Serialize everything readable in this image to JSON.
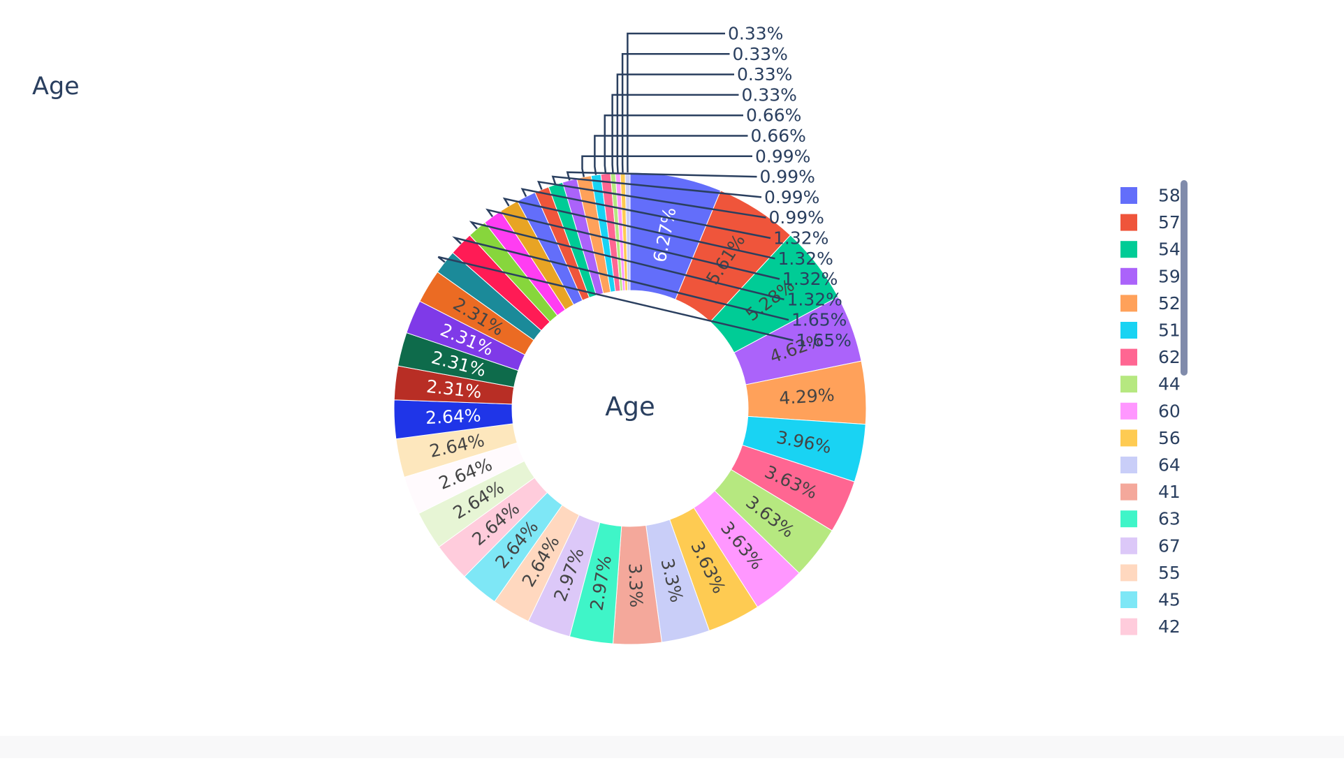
{
  "chart_data": {
    "type": "pie",
    "title": "Age",
    "center_label": "Age",
    "hole": 0.5,
    "slices": [
      {
        "label": "58",
        "value": 6.27,
        "text": "6.27%",
        "color": "#636efa"
      },
      {
        "label": "57",
        "value": 5.61,
        "text": "5.61%",
        "color": "#EF553B"
      },
      {
        "label": "54",
        "value": 5.28,
        "text": "5.28%",
        "color": "#00cc96"
      },
      {
        "label": "59",
        "value": 4.62,
        "text": "4.62%",
        "color": "#ab63fa"
      },
      {
        "label": "52",
        "value": 4.29,
        "text": "4.29%",
        "color": "#FFA15A"
      },
      {
        "label": "51",
        "value": 3.96,
        "text": "3.96%",
        "color": "#19d3f3"
      },
      {
        "label": "62",
        "value": 3.63,
        "text": "3.63%",
        "color": "#FF6692"
      },
      {
        "label": "44",
        "value": 3.63,
        "text": "3.63%",
        "color": "#B6E880"
      },
      {
        "label": "60",
        "value": 3.63,
        "text": "3.63%",
        "color": "#FF97FF"
      },
      {
        "label": "56",
        "value": 3.63,
        "text": "3.63%",
        "color": "#FECB52"
      },
      {
        "label": "64",
        "value": 3.3,
        "text": "3.3%",
        "color": "#c9cef8"
      },
      {
        "label": "41",
        "value": 3.3,
        "text": "3.3%",
        "color": "#f4a89b"
      },
      {
        "label": "63",
        "value": 2.97,
        "text": "2.97%",
        "color": "#3ff5c8"
      },
      {
        "label": "67",
        "value": 2.97,
        "text": "2.97%",
        "color": "#dcc8f8"
      },
      {
        "label": "55",
        "value": 2.64,
        "text": "2.64%",
        "color": "#ffd8bf"
      },
      {
        "label": "45",
        "value": 2.64,
        "text": "2.64%",
        "color": "#7ee7f6"
      },
      {
        "label": "42",
        "value": 2.64,
        "text": "2.64%",
        "color": "#ffccdc"
      },
      {
        "label": "",
        "value": 2.64,
        "text": "2.64%",
        "color": "#e7f5d5"
      },
      {
        "label": "",
        "value": 2.64,
        "text": "2.64%",
        "color": "#fffafd"
      },
      {
        "label": "",
        "value": 2.64,
        "text": "2.64%",
        "color": "#fde7bd"
      },
      {
        "label": "",
        "value": 2.64,
        "text": "2.64%",
        "color": "#1f35e8"
      },
      {
        "label": "",
        "value": 2.31,
        "text": "2.31%",
        "color": "#b82e25"
      },
      {
        "label": "",
        "value": 2.31,
        "text": "2.31%",
        "color": "#0e6b4b"
      },
      {
        "label": "",
        "value": 2.31,
        "text": "2.31%",
        "color": "#7f3ae8"
      },
      {
        "label": "",
        "value": 2.31,
        "text": "2.31%",
        "color": "#eb6b23"
      },
      {
        "label": "",
        "value": 1.65,
        "text": "1.65%",
        "color": "#1b8a99"
      },
      {
        "label": "",
        "value": 1.65,
        "text": "1.65%",
        "color": "#ff1b55"
      },
      {
        "label": "",
        "value": 1.32,
        "text": "1.32%",
        "color": "#87d63c"
      },
      {
        "label": "",
        "value": 1.32,
        "text": "1.32%",
        "color": "#ff3df2"
      },
      {
        "label": "",
        "value": 1.32,
        "text": "1.32%",
        "color": "#e8a424"
      },
      {
        "label": "",
        "value": 1.32,
        "text": "1.32%",
        "color": "#636efa"
      },
      {
        "label": "",
        "value": 0.99,
        "text": "0.99%",
        "color": "#EF553B"
      },
      {
        "label": "",
        "value": 0.99,
        "text": "0.99%",
        "color": "#00cc96"
      },
      {
        "label": "",
        "value": 0.99,
        "text": "0.99%",
        "color": "#ab63fa"
      },
      {
        "label": "",
        "value": 0.99,
        "text": "0.99%",
        "color": "#FFA15A"
      },
      {
        "label": "",
        "value": 0.66,
        "text": "0.66%",
        "color": "#19d3f3"
      },
      {
        "label": "",
        "value": 0.66,
        "text": "0.66%",
        "color": "#FF6692"
      },
      {
        "label": "",
        "value": 0.33,
        "text": "0.33%",
        "color": "#B6E880"
      },
      {
        "label": "",
        "value": 0.33,
        "text": "0.33%",
        "color": "#FF97FF"
      },
      {
        "label": "",
        "value": 0.33,
        "text": "0.33%",
        "color": "#FECB52"
      },
      {
        "label": "",
        "value": 0.33,
        "text": "0.33%",
        "color": "#c9cef8"
      }
    ],
    "legend": {
      "position": "right",
      "scrollable": true,
      "items": [
        "58",
        "57",
        "54",
        "59",
        "52",
        "51",
        "62",
        "44",
        "60",
        "56",
        "64",
        "41",
        "63",
        "67",
        "55",
        "45",
        "42"
      ]
    },
    "colors": {
      "text": "#2a3f5f",
      "scrollbar": "#808bab"
    }
  }
}
